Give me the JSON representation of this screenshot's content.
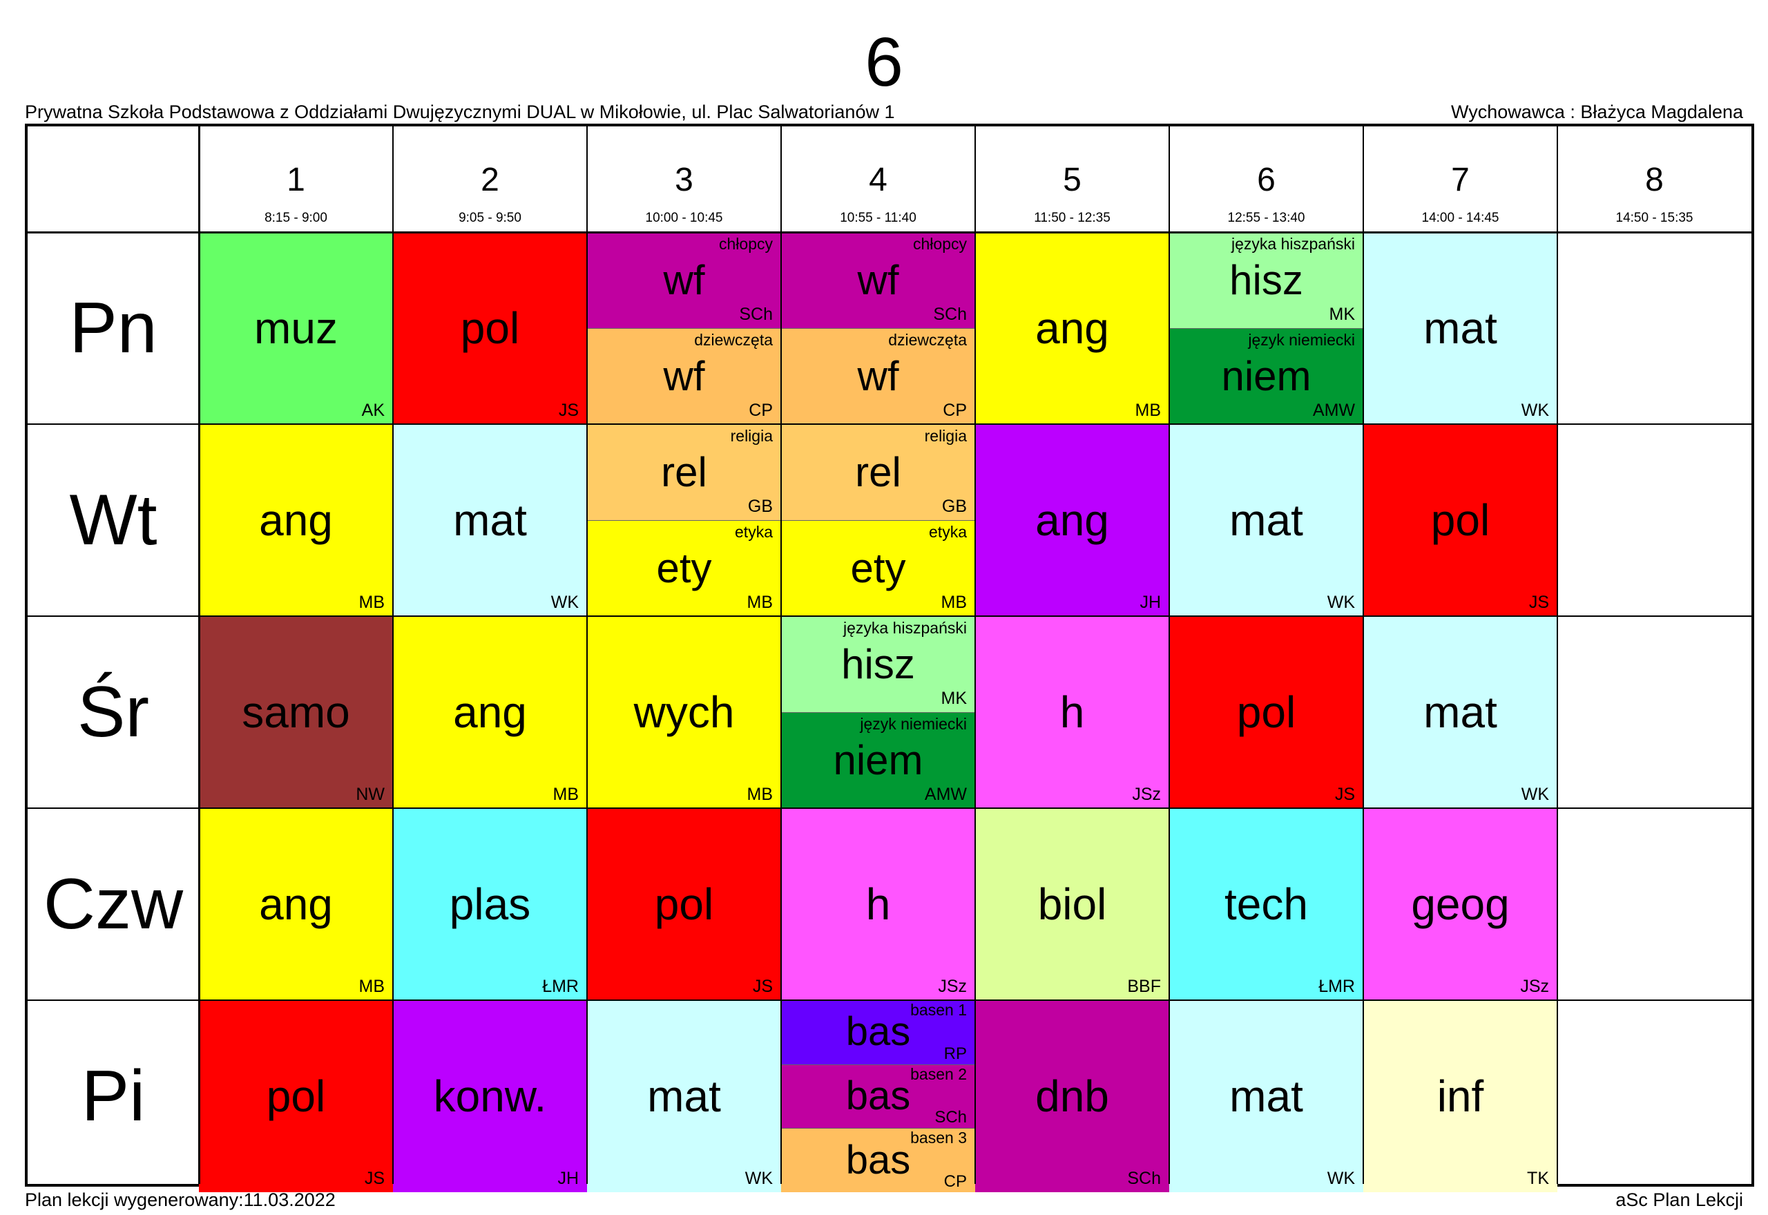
{
  "header": {
    "class_name": "6",
    "school": "Prywatna Szkoła Podstawowa z Oddziałami Dwujęzycznymi DUAL w Mikołowie, ul. Plac Salwatorianów 1",
    "homeroom_teacher": "Wychowawca : Błażyca Magdalena"
  },
  "footer": {
    "generated": "Plan lekcji wygenerowany:11.03.2022",
    "software": "aSc Plan Lekcji"
  },
  "periods": [
    {
      "num": "1",
      "time": "8:15 - 9:00"
    },
    {
      "num": "2",
      "time": "9:05 - 9:50"
    },
    {
      "num": "3",
      "time": "10:00 - 10:45"
    },
    {
      "num": "4",
      "time": "10:55 - 11:40"
    },
    {
      "num": "5",
      "time": "11:50 - 12:35"
    },
    {
      "num": "6",
      "time": "12:55 - 13:40"
    },
    {
      "num": "7",
      "time": "14:00 - 14:45"
    },
    {
      "num": "8",
      "time": "14:50 - 15:35"
    }
  ],
  "days": [
    {
      "name": "Pn",
      "lessons": [
        [
          {
            "subject": "muz",
            "teacher": "AK",
            "color": "#66ff66"
          }
        ],
        [
          {
            "subject": "pol",
            "teacher": "JS",
            "color": "#ff0000"
          }
        ],
        [
          {
            "subject": "wf",
            "teacher": "SCh",
            "group": "chłopcy",
            "color": "#c000a0"
          },
          {
            "subject": "wf",
            "teacher": "CP",
            "group": "dziewczęta",
            "color": "#ffbf5f"
          }
        ],
        [
          {
            "subject": "wf",
            "teacher": "SCh",
            "group": "chłopcy",
            "color": "#c000a0"
          },
          {
            "subject": "wf",
            "teacher": "CP",
            "group": "dziewczęta",
            "color": "#ffbf5f"
          }
        ],
        [
          {
            "subject": "ang",
            "teacher": "MB",
            "color": "#ffff00"
          }
        ],
        [
          {
            "subject": "hisz",
            "teacher": "MK",
            "group": "języka hiszpański",
            "color": "#a0ffa0"
          },
          {
            "subject": "niem",
            "teacher": "AMW",
            "group": "język niemiecki",
            "color": "#009933"
          }
        ],
        [
          {
            "subject": "mat",
            "teacher": "WK",
            "color": "#ccffff"
          }
        ],
        []
      ]
    },
    {
      "name": "Wt",
      "lessons": [
        [
          {
            "subject": "ang",
            "teacher": "MB",
            "color": "#ffff00"
          }
        ],
        [
          {
            "subject": "mat",
            "teacher": "WK",
            "color": "#ccffff"
          }
        ],
        [
          {
            "subject": "rel",
            "teacher": "GB",
            "group": "religia",
            "color": "#ffcc66"
          },
          {
            "subject": "ety",
            "teacher": "MB",
            "group": "etyka",
            "color": "#ffff00"
          }
        ],
        [
          {
            "subject": "rel",
            "teacher": "GB",
            "group": "religia",
            "color": "#ffcc66"
          },
          {
            "subject": "ety",
            "teacher": "MB",
            "group": "etyka",
            "color": "#ffff00"
          }
        ],
        [
          {
            "subject": "ang",
            "teacher": "JH",
            "color": "#bb00ff"
          }
        ],
        [
          {
            "subject": "mat",
            "teacher": "WK",
            "color": "#ccffff"
          }
        ],
        [
          {
            "subject": "pol",
            "teacher": "JS",
            "color": "#ff0000"
          }
        ],
        []
      ]
    },
    {
      "name": "Śr",
      "lessons": [
        [
          {
            "subject": "samo",
            "teacher": "NW",
            "color": "#993333"
          }
        ],
        [
          {
            "subject": "ang",
            "teacher": "MB",
            "color": "#ffff00"
          }
        ],
        [
          {
            "subject": "wych",
            "teacher": "MB",
            "color": "#ffff00"
          }
        ],
        [
          {
            "subject": "hisz",
            "teacher": "MK",
            "group": "języka hiszpański",
            "color": "#a0ffa0"
          },
          {
            "subject": "niem",
            "teacher": "AMW",
            "group": "język niemiecki",
            "color": "#009933"
          }
        ],
        [
          {
            "subject": "h",
            "teacher": "JSz",
            "color": "#ff55ff"
          }
        ],
        [
          {
            "subject": "pol",
            "teacher": "JS",
            "color": "#ff0000"
          }
        ],
        [
          {
            "subject": "mat",
            "teacher": "WK",
            "color": "#ccffff"
          }
        ],
        []
      ]
    },
    {
      "name": "Czw",
      "lessons": [
        [
          {
            "subject": "ang",
            "teacher": "MB",
            "color": "#ffff00"
          }
        ],
        [
          {
            "subject": "plas",
            "teacher": "ŁMR",
            "color": "#66ffff"
          }
        ],
        [
          {
            "subject": "pol",
            "teacher": "JS",
            "color": "#ff0000"
          }
        ],
        [
          {
            "subject": "h",
            "teacher": "JSz",
            "color": "#ff55ff"
          }
        ],
        [
          {
            "subject": "biol",
            "teacher": "BBF",
            "color": "#ddff99"
          }
        ],
        [
          {
            "subject": "tech",
            "teacher": "ŁMR",
            "color": "#66ffff"
          }
        ],
        [
          {
            "subject": "geog",
            "teacher": "JSz",
            "color": "#ff55ff"
          }
        ],
        []
      ]
    },
    {
      "name": "Pi",
      "lessons": [
        [
          {
            "subject": "pol",
            "teacher": "JS",
            "color": "#ff0000"
          }
        ],
        [
          {
            "subject": "konw.",
            "teacher": "JH",
            "color": "#bb00ff"
          }
        ],
        [
          {
            "subject": "mat",
            "teacher": "WK",
            "color": "#ccffff"
          }
        ],
        [
          {
            "subject": "bas",
            "teacher": "RP",
            "group": "basen 1",
            "color": "#6600ff"
          },
          {
            "subject": "bas",
            "teacher": "SCh",
            "group": "basen 2",
            "color": "#c000a0"
          },
          {
            "subject": "bas",
            "teacher": "CP",
            "group": "basen 3",
            "color": "#ffbf5f"
          }
        ],
        [
          {
            "subject": "dnb",
            "teacher": "SCh",
            "color": "#c000a0"
          }
        ],
        [
          {
            "subject": "mat",
            "teacher": "WK",
            "color": "#ccffff"
          }
        ],
        [
          {
            "subject": "inf",
            "teacher": "TK",
            "color": "#ffffcc"
          }
        ],
        []
      ]
    }
  ]
}
